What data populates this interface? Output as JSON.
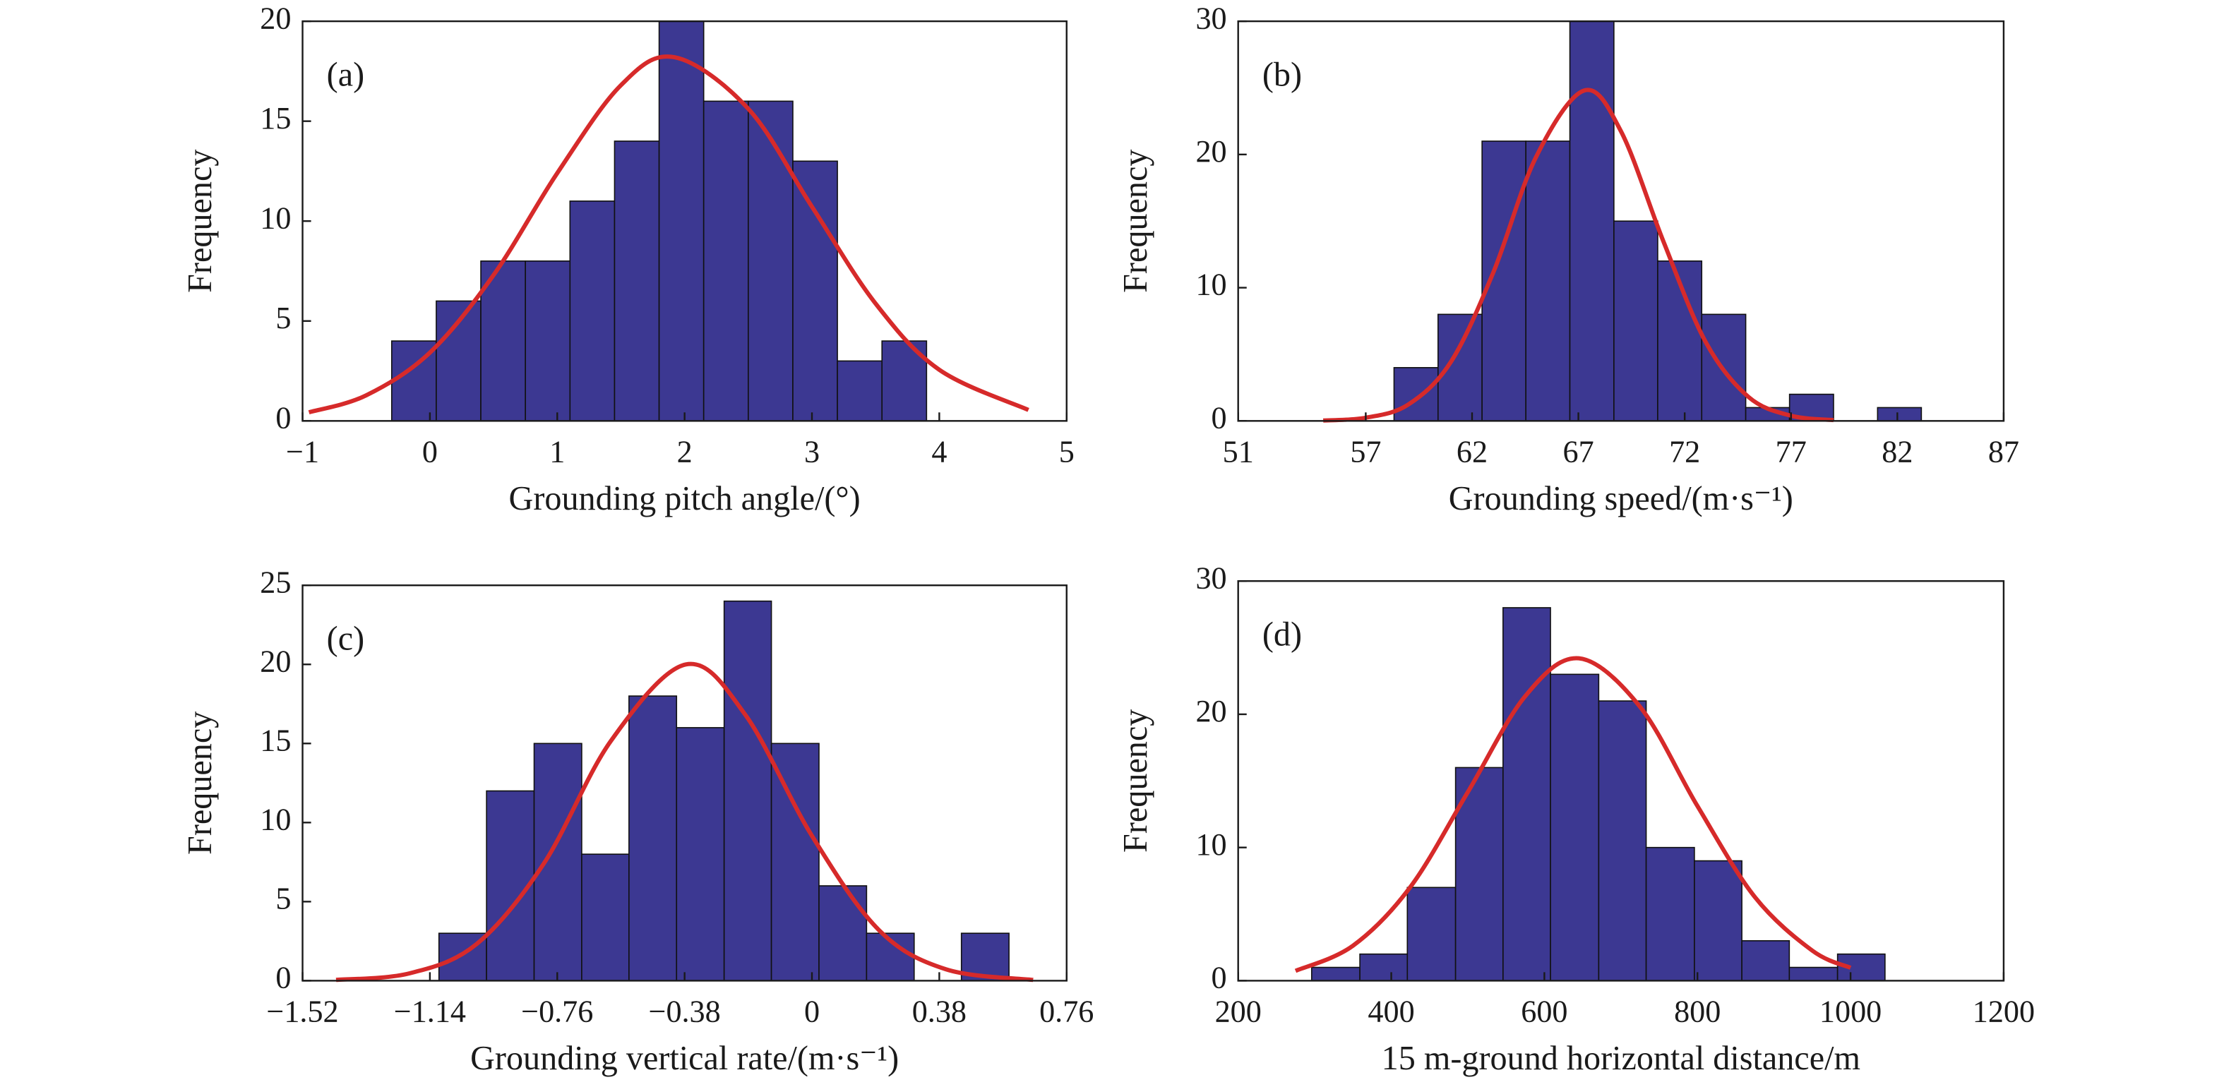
{
  "chart_data": [
    {
      "type": "histogram",
      "panel_label": "(a)",
      "xlabel": "Grounding pitch angle/(°)",
      "ylabel": "Frequency",
      "bins": [
        -0.3,
        0.05,
        0.4,
        0.75,
        1.1,
        1.45,
        1.8,
        2.15,
        2.5,
        2.85,
        3.2,
        3.55,
        3.9
      ],
      "counts": [
        4,
        6,
        8,
        8,
        11,
        14,
        20,
        16,
        16,
        13,
        3,
        4
      ],
      "color": "#3c3892",
      "curve": {
        "x": [
          -0.95,
          -0.5,
          0,
          0.5,
          1,
          1.5,
          1.92,
          2.5,
          3,
          3.5,
          4,
          4.7
        ],
        "values": [
          0.43,
          1.28,
          3.42,
          7.3,
          12.4,
          16.8,
          18.2,
          15.62,
          10.72,
          5.87,
          2.56,
          0.55
        ],
        "color": "#d62a2a"
      },
      "xlim": [
        -1,
        5
      ],
      "ylim": [
        0,
        20
      ],
      "xticks": [
        {
          "value": -1,
          "label": "−1"
        },
        0,
        1,
        2,
        3,
        4,
        5
      ],
      "yticks": [
        0,
        5,
        10,
        15,
        20
      ]
    },
    {
      "type": "histogram",
      "panel_label": "(b)",
      "xlabel": "Grounding speed/(m·s⁻¹)",
      "ylabel": "Frequency",
      "bins": [
        58.33,
        60.4,
        62.47,
        64.53,
        66.6,
        68.67,
        70.73,
        72.8,
        74.87,
        76.93,
        79,
        81.07,
        83.13
      ],
      "counts": [
        4,
        8,
        21,
        21,
        30,
        15,
        12,
        8,
        1,
        2,
        0,
        1
      ],
      "color": "#3c3892",
      "curve": {
        "x": [
          55,
          57,
          59,
          61,
          63,
          65,
          67.27,
          69,
          71,
          73,
          75,
          77,
          79
        ],
        "values": [
          0.03,
          0.24,
          1.23,
          4.42,
          11.15,
          19.78,
          24.8,
          21.75,
          13.47,
          5.88,
          1.8,
          0.39,
          0.06
        ],
        "color": "#d62a2a"
      },
      "xlim": [
        51,
        87
      ],
      "ylim": [
        0,
        30
      ],
      "xticks": [
        51,
        57,
        62,
        67,
        72,
        77,
        82,
        87
      ],
      "yticks": [
        0,
        10,
        20,
        30
      ]
    },
    {
      "type": "histogram",
      "panel_label": "(c)",
      "xlabel": "Grounding vertical rate/(m·s⁻¹)",
      "ylabel": "Frequency",
      "bins": [
        -1.113,
        -0.971,
        -0.829,
        -0.687,
        -0.546,
        -0.404,
        -0.262,
        -0.121,
        0.021,
        0.163,
        0.305,
        0.446,
        0.588
      ],
      "counts": [
        3,
        12,
        15,
        8,
        18,
        16,
        24,
        15,
        6,
        3,
        0,
        3
      ],
      "color": "#3c3892",
      "curve": {
        "x": [
          -1.42,
          -1.2,
          -1.0,
          -0.8,
          -0.6,
          -0.376,
          -0.2,
          0,
          0.2,
          0.4,
          0.66
        ],
        "values": [
          0.05,
          0.47,
          2.33,
          7.41,
          15.16,
          20,
          16.85,
          9.16,
          3.2,
          0.72,
          0.05
        ],
        "color": "#d62a2a"
      },
      "xlim": [
        -1.52,
        0.76
      ],
      "ylim": [
        0,
        25
      ],
      "xticks": [
        {
          "value": -1.52,
          "label": "−1.52"
        },
        {
          "value": -1.14,
          "label": "−1.14"
        },
        {
          "value": -0.76,
          "label": "−0.76"
        },
        {
          "value": -0.38,
          "label": "−0.38"
        },
        0,
        0.38,
        0.76
      ],
      "yticks": [
        0,
        5,
        10,
        15,
        20,
        25
      ]
    },
    {
      "type": "histogram",
      "panel_label": "(d)",
      "xlabel": "15 m-ground horizontal distance/m",
      "ylabel": "Frequency",
      "bins": [
        296,
        359,
        421,
        484,
        546,
        608,
        671,
        733,
        796,
        858,
        920,
        983,
        1045
      ],
      "counts": [
        1,
        2,
        7,
        16,
        28,
        23,
        21,
        10,
        9,
        3,
        1,
        2
      ],
      "color": "#3c3892",
      "curve": {
        "x": [
          275,
          350,
          425,
          500,
          575,
          645,
          725,
          800,
          875,
          950,
          1000
        ],
        "values": [
          0.74,
          2.63,
          7.04,
          14.16,
          21.36,
          24.2,
          20.56,
          13.11,
          6.28,
          2.26,
          0.97
        ],
        "color": "#d62a2a"
      },
      "xlim": [
        200,
        1200
      ],
      "ylim": [
        0,
        30
      ],
      "xticks": [
        200,
        400,
        600,
        800,
        1000,
        1200
      ],
      "yticks": [
        0,
        10,
        20,
        30
      ]
    }
  ]
}
